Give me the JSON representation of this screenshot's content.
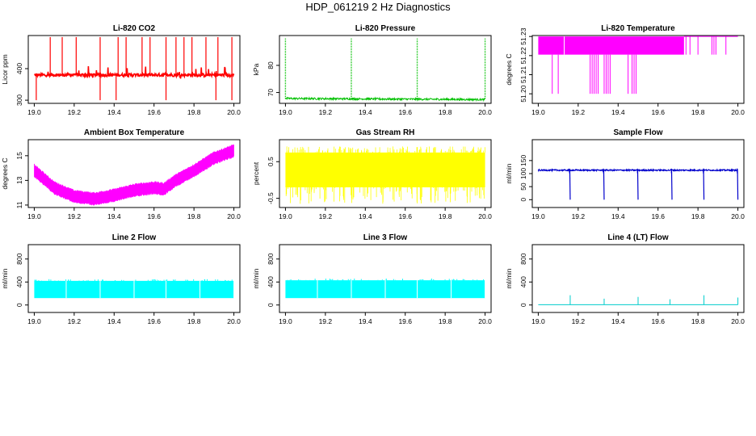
{
  "title": "HDP_061219  2 Hz Diagnostics",
  "chart_data": [
    {
      "id": "co2",
      "type": "line",
      "title": "Li-820 CO2",
      "xlabel": "",
      "ylabel": "Licor ppm",
      "color": "#ff0000",
      "xlim": [
        18.97,
        20.03
      ],
      "ylim": [
        290,
        505
      ],
      "xticks": [
        19.0,
        19.2,
        19.4,
        19.6,
        19.8,
        20.0
      ],
      "yticks": [
        300,
        400
      ],
      "ytick_labels": [
        "300",
        "400"
      ],
      "series": {
        "kind": "co2",
        "base": 380,
        "noise": 5,
        "spikes_up": [
          19.08,
          19.14,
          19.21,
          19.33,
          19.42,
          19.46,
          19.54,
          19.58,
          19.66,
          19.71,
          19.75,
          19.79,
          19.86,
          19.92,
          19.99
        ],
        "spike_top": 500,
        "spikes_down": [
          19.01,
          19.33,
          19.41,
          19.66,
          19.91,
          19.99
        ],
        "spike_bottom": 300
      }
    },
    {
      "id": "pressure",
      "type": "line",
      "title": "Li-820 Pressure",
      "xlabel": "",
      "ylabel": "kPa",
      "color": "#00c000",
      "xlim": [
        18.97,
        20.03
      ],
      "ylim": [
        66,
        91
      ],
      "xticks": [
        19.0,
        19.2,
        19.4,
        19.6,
        19.8,
        20.0
      ],
      "yticks": [
        70,
        80
      ],
      "ytick_labels": [
        "70",
        "80"
      ],
      "series": {
        "kind": "pressure",
        "base_start": 67.8,
        "base_end": 67.4,
        "noise": 0.35,
        "spikes": [
          19.0,
          19.33,
          19.66,
          20.0
        ],
        "spike_top": 90
      }
    },
    {
      "id": "licor_temp",
      "type": "area",
      "title": "Li-820 Temperature",
      "xlabel": "",
      "ylabel": "degrees C",
      "color": "#ff00ff",
      "xlim": [
        18.97,
        20.03
      ],
      "ylim": [
        51.195,
        51.2305
      ],
      "xticks": [
        19.0,
        19.2,
        19.4,
        19.6,
        19.8,
        20.0
      ],
      "yticks": [
        51.2,
        51.21,
        51.22,
        51.23
      ],
      "ytick_labels": [
        "51.20",
        "51.21",
        "51.22",
        "51.23"
      ],
      "series": {
        "kind": "toggle",
        "low": 51.2205,
        "high": 51.23,
        "fill_end": 19.73,
        "down_bars": [
          19.07,
          19.1,
          19.26,
          19.27,
          19.28,
          19.29,
          19.3,
          19.33,
          19.34,
          19.35,
          19.36,
          19.45,
          19.47,
          19.48,
          19.49
        ],
        "down_level": 51.2,
        "late_bars": [
          19.74,
          19.76,
          19.8,
          19.87,
          19.88,
          19.89,
          19.94
        ]
      }
    },
    {
      "id": "box_temp",
      "type": "area",
      "title": "Ambient Box Temperature",
      "xlabel": "",
      "ylabel": "degrees C",
      "color": "#ff00ff",
      "xlim": [
        18.97,
        20.03
      ],
      "ylim": [
        10.8,
        16.3
      ],
      "xticks": [
        19.0,
        19.2,
        19.4,
        19.6,
        19.8,
        20.0
      ],
      "yticks": [
        11,
        13,
        15
      ],
      "ytick_labels": [
        "11",
        "13",
        "15"
      ],
      "series": {
        "kind": "box",
        "curve": [
          [
            19.0,
            13.8
          ],
          [
            19.1,
            12.4
          ],
          [
            19.2,
            11.7
          ],
          [
            19.3,
            11.5
          ],
          [
            19.4,
            11.8
          ],
          [
            19.5,
            12.2
          ],
          [
            19.6,
            12.4
          ],
          [
            19.65,
            12.3
          ],
          [
            19.7,
            12.9
          ],
          [
            19.8,
            13.8
          ],
          [
            19.9,
            14.8
          ],
          [
            20.0,
            15.4
          ]
        ],
        "band": 0.8
      }
    },
    {
      "id": "rh",
      "type": "area",
      "title": "Gas Stream RH",
      "xlabel": "",
      "ylabel": "percent",
      "color": "#ffff00",
      "xlim": [
        18.97,
        20.03
      ],
      "ylim": [
        -0.75,
        1.1
      ],
      "xticks": [
        19.0,
        19.2,
        19.4,
        19.6,
        19.8,
        20.0
      ],
      "yticks": [
        -0.5,
        0.5
      ],
      "ytick_labels": [
        "-0.5",
        "0.5"
      ],
      "series": {
        "kind": "band",
        "low": -0.2,
        "high": 0.75,
        "spike_low": -0.65,
        "spike_high": 0.92
      }
    },
    {
      "id": "sample_flow",
      "type": "line",
      "title": "Sample Flow",
      "xlabel": "",
      "ylabel": "ml/min",
      "color": "#0000cc",
      "xlim": [
        18.97,
        20.03
      ],
      "ylim": [
        -30,
        230
      ],
      "xticks": [
        19.0,
        19.2,
        19.4,
        19.6,
        19.8,
        20.0
      ],
      "yticks": [
        0,
        50,
        100,
        150
      ],
      "ytick_labels": [
        "0",
        "50",
        "100",
        "150"
      ],
      "series": {
        "kind": "flow",
        "base": 113,
        "noise": 2.5,
        "drops": [
          19.16,
          19.33,
          19.5,
          19.67,
          19.83,
          20.0
        ],
        "drop_to": 0
      }
    },
    {
      "id": "line2",
      "type": "area",
      "title": "Line 2 Flow",
      "xlabel": "",
      "ylabel": "ml/min",
      "color": "#00ffff",
      "xlim": [
        18.97,
        20.03
      ],
      "ylim": [
        -130,
        1050
      ],
      "xticks": [
        19.0,
        19.2,
        19.4,
        19.6,
        19.8,
        20.0
      ],
      "yticks": [
        0,
        400,
        800
      ],
      "ytick_labels": [
        "0",
        "400",
        "800"
      ],
      "series": {
        "kind": "line_flow",
        "low": 120,
        "high": 420,
        "gaps": [
          19.16,
          19.33,
          19.5,
          19.66,
          19.83,
          20.0
        ]
      }
    },
    {
      "id": "line3",
      "type": "area",
      "title": "Line 3 Flow",
      "xlabel": "",
      "ylabel": "ml/min",
      "color": "#00ffff",
      "xlim": [
        18.97,
        20.03
      ],
      "ylim": [
        -130,
        1050
      ],
      "xticks": [
        19.0,
        19.2,
        19.4,
        19.6,
        19.8,
        20.0
      ],
      "yticks": [
        0,
        400,
        800
      ],
      "ytick_labels": [
        "0",
        "400",
        "800"
      ],
      "series": {
        "kind": "line_flow",
        "low": 120,
        "high": 430,
        "gaps": [
          19.16,
          19.33,
          19.5,
          19.66,
          19.83,
          20.0
        ]
      }
    },
    {
      "id": "line4",
      "type": "line",
      "title": "Line 4 (LT) Flow",
      "xlabel": "",
      "ylabel": "ml/min",
      "color": "#00cccc",
      "xlim": [
        18.97,
        20.03
      ],
      "ylim": [
        -130,
        1050
      ],
      "xticks": [
        19.0,
        19.2,
        19.4,
        19.6,
        19.8,
        20.0
      ],
      "yticks": [
        0,
        400,
        800
      ],
      "ytick_labels": [
        "0",
        "400",
        "800"
      ],
      "series": {
        "kind": "spikes",
        "base": 5,
        "spikes": [
          19.16,
          19.33,
          19.5,
          19.66,
          19.83,
          20.0
        ],
        "spike_heights": [
          170,
          110,
          140,
          100,
          170,
          130
        ]
      }
    }
  ]
}
